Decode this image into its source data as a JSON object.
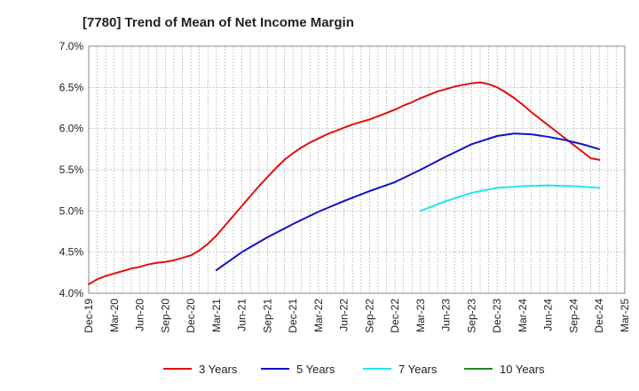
{
  "chart_data": {
    "type": "line",
    "title": "[7780]  Trend of Mean of Net Income Margin",
    "xlabel": "",
    "ylabel": "",
    "x_ticks": [
      "Dec-19",
      "Mar-20",
      "Jun-20",
      "Sep-20",
      "Dec-20",
      "Mar-21",
      "Jun-21",
      "Sep-21",
      "Dec-21",
      "Mar-22",
      "Jun-22",
      "Sep-22",
      "Dec-22",
      "Mar-23",
      "Jun-23",
      "Sep-23",
      "Dec-23",
      "Mar-24",
      "Jun-24",
      "Sep-24",
      "Dec-24",
      "Mar-25"
    ],
    "y_ticks": [
      "4.0%",
      "4.5%",
      "5.0%",
      "5.5%",
      "6.0%",
      "6.5%",
      "7.0%"
    ],
    "ylim": [
      4.0,
      7.0
    ],
    "grid": true,
    "legend_position": "bottom",
    "series": [
      {
        "name": "3 Years",
        "color": "#dd1111",
        "points": [
          [
            "Dec-19",
            4.11
          ],
          [
            "Jan-20",
            4.17
          ],
          [
            "Feb-20",
            4.21
          ],
          [
            "Mar-20",
            4.24
          ],
          [
            "Apr-20",
            4.27
          ],
          [
            "May-20",
            4.3
          ],
          [
            "Jun-20",
            4.32
          ],
          [
            "Jul-20",
            4.35
          ],
          [
            "Aug-20",
            4.37
          ],
          [
            "Sep-20",
            4.38
          ],
          [
            "Oct-20",
            4.4
          ],
          [
            "Nov-20",
            4.43
          ],
          [
            "Dec-20",
            4.46
          ],
          [
            "Jan-21",
            4.52
          ],
          [
            "Feb-21",
            4.6
          ],
          [
            "Mar-21",
            4.7
          ],
          [
            "Apr-21",
            4.82
          ],
          [
            "May-21",
            4.94
          ],
          [
            "Jun-21",
            5.06
          ],
          [
            "Jul-21",
            5.18
          ],
          [
            "Aug-21",
            5.3
          ],
          [
            "Sep-21",
            5.41
          ],
          [
            "Oct-21",
            5.52
          ],
          [
            "Nov-21",
            5.62
          ],
          [
            "Dec-21",
            5.7
          ],
          [
            "Jan-22",
            5.77
          ],
          [
            "Feb-22",
            5.83
          ],
          [
            "Mar-22",
            5.88
          ],
          [
            "Apr-22",
            5.93
          ],
          [
            "May-22",
            5.97
          ],
          [
            "Jun-22",
            6.01
          ],
          [
            "Jul-22",
            6.05
          ],
          [
            "Aug-22",
            6.08
          ],
          [
            "Sep-22",
            6.11
          ],
          [
            "Oct-22",
            6.15
          ],
          [
            "Nov-22",
            6.19
          ],
          [
            "Dec-22",
            6.23
          ],
          [
            "Jan-23",
            6.28
          ],
          [
            "Feb-23",
            6.32
          ],
          [
            "Mar-23",
            6.37
          ],
          [
            "Apr-23",
            6.41
          ],
          [
            "May-23",
            6.45
          ],
          [
            "Jun-23",
            6.48
          ],
          [
            "Jul-23",
            6.51
          ],
          [
            "Aug-23",
            6.53
          ],
          [
            "Sep-23",
            6.55
          ],
          [
            "Oct-23",
            6.56
          ],
          [
            "Nov-23",
            6.54
          ],
          [
            "Dec-23",
            6.5
          ],
          [
            "Jan-24",
            6.44
          ],
          [
            "Feb-24",
            6.37
          ],
          [
            "Mar-24",
            6.29
          ],
          [
            "Apr-24",
            6.2
          ],
          [
            "May-24",
            6.12
          ],
          [
            "Jun-24",
            6.04
          ],
          [
            "Jul-24",
            5.96
          ],
          [
            "Aug-24",
            5.88
          ],
          [
            "Sep-24",
            5.8
          ],
          [
            "Oct-24",
            5.72
          ],
          [
            "Nov-24",
            5.64
          ],
          [
            "Dec-24",
            5.62
          ]
        ]
      },
      {
        "name": "5 Years",
        "color": "#1111cc",
        "points": [
          [
            "Mar-21",
            4.28
          ],
          [
            "Jun-21",
            4.5
          ],
          [
            "Sep-21",
            4.68
          ],
          [
            "Dec-21",
            4.84
          ],
          [
            "Mar-22",
            4.99
          ],
          [
            "Jun-22",
            5.12
          ],
          [
            "Sep-22",
            5.24
          ],
          [
            "Dec-22",
            5.35
          ],
          [
            "Mar-23",
            5.5
          ],
          [
            "Jun-23",
            5.66
          ],
          [
            "Sep-23",
            5.81
          ],
          [
            "Dec-23",
            5.91
          ],
          [
            "Feb-24",
            5.94
          ],
          [
            "Apr-24",
            5.93
          ],
          [
            "Jun-24",
            5.9
          ],
          [
            "Aug-24",
            5.86
          ],
          [
            "Oct-24",
            5.81
          ],
          [
            "Dec-24",
            5.75
          ]
        ]
      },
      {
        "name": "7 Years",
        "color": "#22e5ee",
        "points": [
          [
            "Mar-23",
            5.0
          ],
          [
            "Jun-23",
            5.12
          ],
          [
            "Sep-23",
            5.22
          ],
          [
            "Dec-23",
            5.28
          ],
          [
            "Mar-24",
            5.3
          ],
          [
            "Jun-24",
            5.31
          ],
          [
            "Sep-24",
            5.3
          ],
          [
            "Dec-24",
            5.28
          ]
        ]
      },
      {
        "name": "10 Years",
        "color": "#228822",
        "points": []
      }
    ]
  }
}
